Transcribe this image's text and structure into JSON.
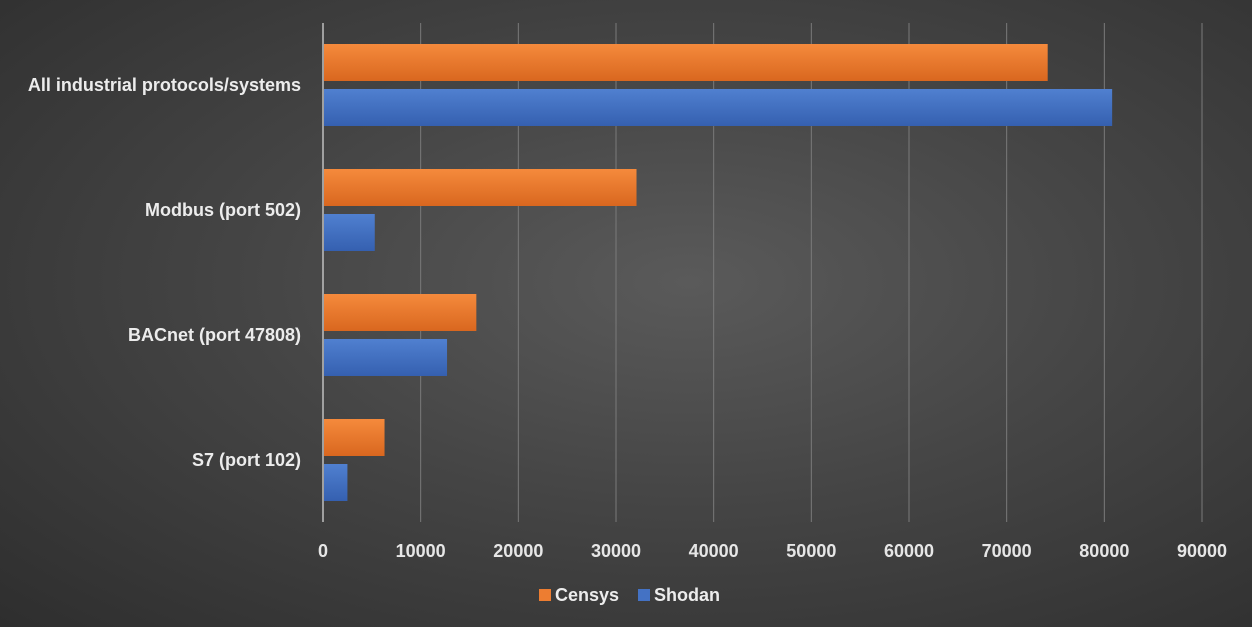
{
  "chart_data": {
    "type": "bar",
    "orientation": "horizontal",
    "categories": [
      "All industrial protocols/systems",
      "Modbus (port 502)",
      "BACnet (port 47808)",
      "S7 (port 102)"
    ],
    "series": [
      {
        "name": "Censys",
        "color": "#ed7d31",
        "values": [
          74200,
          32100,
          15700,
          6300
        ]
      },
      {
        "name": "Shodan",
        "color": "#4472c4",
        "values": [
          80800,
          5300,
          12700,
          2500
        ]
      }
    ],
    "xlim": [
      0,
      90000
    ],
    "xticks": [
      "0",
      "10000",
      "20000",
      "30000",
      "40000",
      "50000",
      "60000",
      "70000",
      "80000",
      "90000"
    ],
    "title": "",
    "xlabel": "",
    "ylabel": "",
    "grid": true,
    "legend_position": "bottom"
  }
}
